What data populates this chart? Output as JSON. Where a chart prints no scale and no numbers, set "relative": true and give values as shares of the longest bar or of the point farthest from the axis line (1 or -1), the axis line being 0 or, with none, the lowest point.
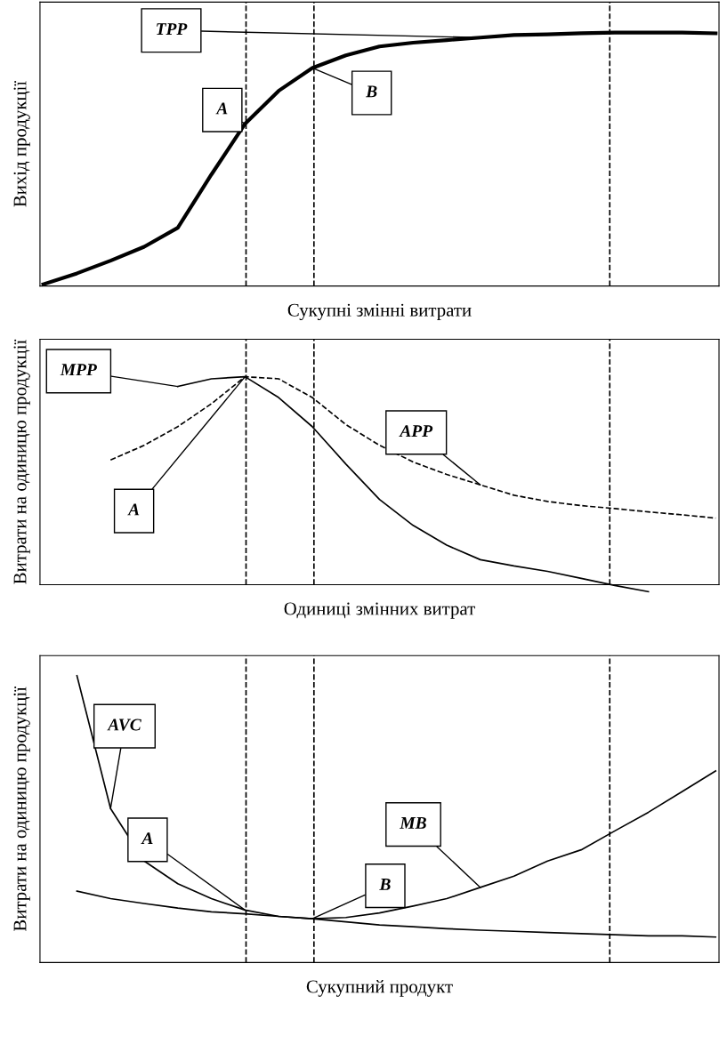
{
  "chart_data": [
    {
      "type": "line",
      "relative": true,
      "xlabel": "Сукупні змінні витрати",
      "ylabel": "Вихід продукції",
      "categories": [
        null,
        null,
        null,
        null,
        null,
        null,
        null,
        null,
        null,
        null,
        null,
        null,
        null,
        null,
        null,
        null,
        null,
        null,
        null,
        null,
        null
      ],
      "series": [
        {
          "color": "#000000",
          "line_style": "solid",
          "values": [
            0.007,
            0.05,
            0.1,
            0.155,
            0.23,
            0.44,
            0.64,
            0.77,
            0.86,
            0.91,
            0.945,
            0.96,
            0.97,
            0.98,
            0.99,
            0.993,
            0.997,
            1.0,
            1.0,
            1.0,
            0.997
          ]
        }
      ],
      "annotations": [
        "TPP",
        "A",
        "B"
      ]
    },
    {
      "type": "line",
      "relative": true,
      "xlabel": "Одиниці змінних витрат",
      "ylabel": "Витрати на одиницю продукції",
      "categories": [
        null,
        null,
        null,
        null,
        null,
        null,
        null,
        null,
        null,
        null,
        null,
        null,
        null,
        null,
        null,
        null,
        null,
        null,
        null,
        null,
        null
      ],
      "series": [
        {
          "color": "#000000",
          "line_style": "solid",
          "values": [
            null,
            null,
            null,
            null,
            0.953,
            0.99,
            1.0,
            0.9,
            0.76,
            0.58,
            0.41,
            0.285,
            0.19,
            0.12,
            0.09,
            0.064,
            0.03,
            -0.004,
            -0.034,
            null,
            null
          ]
        },
        {
          "color": "#000000",
          "line_style": "dashed",
          "values": [
            null,
            null,
            0.6,
            0.67,
            0.76,
            0.87,
            1.0,
            0.99,
            0.9,
            0.77,
            0.67,
            0.59,
            0.53,
            0.48,
            0.43,
            0.4,
            0.38,
            0.366,
            0.35,
            0.336,
            0.32
          ]
        }
      ],
      "annotations": [
        "MPP",
        "APP",
        "A"
      ]
    },
    {
      "type": "line",
      "relative": true,
      "xlabel": "Сукупний продукт",
      "ylabel": "Витрати на одиницю продукції",
      "categories": [
        null,
        null,
        null,
        null,
        null,
        null,
        null,
        null,
        null,
        null,
        null,
        null,
        null,
        null,
        null,
        null,
        null,
        null,
        null,
        null,
        null
      ],
      "series": [
        {
          "color": "#000000",
          "line_style": "solid",
          "values": [
            null,
            1.0,
            0.537,
            0.354,
            0.275,
            0.223,
            0.183,
            0.161,
            0.153,
            0.157,
            0.173,
            0.197,
            0.223,
            0.262,
            0.301,
            0.354,
            0.393,
            0.459,
            0.524,
            0.596,
            0.668
          ]
        },
        {
          "color": "#000000",
          "line_style": "solid",
          "values": [
            null,
            0.249,
            0.223,
            0.206,
            0.19,
            0.177,
            0.17,
            0.161,
            0.153,
            0.142,
            0.131,
            0.125,
            0.118,
            0.113,
            0.109,
            0.105,
            0.101,
            0.097,
            0.093,
            0.093,
            0.089
          ]
        }
      ],
      "annotations": [
        "AVC",
        "A",
        "B",
        "MB"
      ]
    }
  ]
}
